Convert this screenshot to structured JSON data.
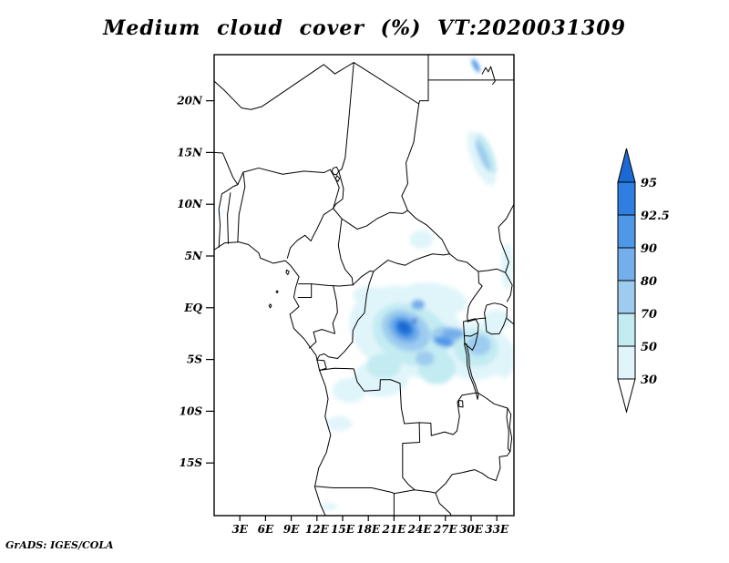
{
  "title": "Medium cloud cover (%) VT:2020031309",
  "footer": "GrADS: IGES/COLA",
  "axes": {
    "lat_labels": [
      "20N",
      "15N",
      "10N",
      "5N",
      "EQ",
      "5S",
      "10S",
      "15S"
    ],
    "lon_labels": [
      "3E",
      "6E",
      "9E",
      "12E",
      "15E",
      "18E",
      "21E",
      "24E",
      "27E",
      "30E",
      "33E"
    ]
  },
  "colorbar": {
    "labels_top_to_bottom": [
      "95",
      "92.5",
      "90",
      "80",
      "70",
      "50",
      "30"
    ],
    "band_colors_top_to_bottom": [
      "#2E7FE1",
      "#4F98E8",
      "#75AFEB",
      "#9DCCEF",
      "#C2EBF2",
      "#E0F5FA"
    ],
    "arrow_top_color": "#1B6AD2",
    "arrow_bottom_color": "#FFFFFF",
    "outline_color": "#000000"
  },
  "chart_data": {
    "type": "heatmap",
    "subtype": "filled-contour-map",
    "variable": "Medium cloud cover",
    "units": "%",
    "valid_time_label": "VT:2020031309",
    "title": "Medium cloud cover (%) VT:2020031309",
    "lon_range_deg_east": [
      0,
      35
    ],
    "lat_range_deg_north": [
      -20.1,
      24.45
    ],
    "lon_ticks_deg_east": [
      3,
      6,
      9,
      12,
      15,
      18,
      21,
      24,
      27,
      30,
      33
    ],
    "lat_ticks_deg_north": [
      20,
      15,
      10,
      5,
      0,
      -5,
      -10,
      -15
    ],
    "contour_levels_percent": [
      30,
      50,
      70,
      80,
      90,
      92.5,
      95
    ],
    "level_colors": {
      "30": "#E0F5FA",
      "50": "#C2EBF2",
      "70": "#9DCCEF",
      "80": "#75AFEB",
      "90": "#4F98E8",
      "92.5": "#2E7FE1",
      "95": "#1B6AD2"
    },
    "background_below_30": "#FFFFFF",
    "grid": false,
    "legend_position": "right-vertical-colorbar",
    "notes": "Maximum cloud cover (>=95%) core over the Congo basin near 22E 2S; lighter 30-70% shading spreads across DRC, the Rift lakes and Tanzania; a diagonal 70-90% band near 31E 14N over Sudan; small >=90% streak near 30.5E 23.5N.",
    "shaded_regions": [
      {
        "lon": 22.5,
        "lat": -2.3,
        "rx_deg": 6.8,
        "ry_deg": 4.3,
        "rot_deg": -12,
        "level": "30"
      },
      {
        "lon": 30.5,
        "lat": -4.2,
        "rx_deg": 4.0,
        "ry_deg": 2.8,
        "rot_deg": 0,
        "level": "30"
      },
      {
        "lon": 19.5,
        "lat": -6.8,
        "rx_deg": 3.2,
        "ry_deg": 1.8,
        "rot_deg": 0,
        "level": "30"
      },
      {
        "lon": 15.8,
        "lat": -8.0,
        "rx_deg": 2.0,
        "ry_deg": 1.2,
        "rot_deg": 0,
        "level": "30"
      },
      {
        "lon": 25.5,
        "lat": 0.8,
        "rx_deg": 4.0,
        "ry_deg": 1.6,
        "rot_deg": -5,
        "level": "30"
      },
      {
        "lon": 18.0,
        "lat": 1.2,
        "rx_deg": 1.8,
        "ry_deg": 0.9,
        "rot_deg": 0,
        "level": "30"
      },
      {
        "lon": 31.2,
        "lat": 14.4,
        "rx_deg": 1.1,
        "ry_deg": 2.9,
        "rot_deg": 28,
        "level": "30"
      },
      {
        "lon": 24.2,
        "lat": 6.6,
        "rx_deg": 1.4,
        "ry_deg": 0.9,
        "rot_deg": 0,
        "level": "30"
      },
      {
        "lon": 34.2,
        "lat": 4.0,
        "rx_deg": 0.7,
        "ry_deg": 2.2,
        "rot_deg": 0,
        "level": "30"
      },
      {
        "lon": 33.0,
        "lat": -1.2,
        "rx_deg": 1.6,
        "ry_deg": 1.0,
        "rot_deg": 0,
        "level": "30"
      },
      {
        "lon": 33.8,
        "lat": -4.8,
        "rx_deg": 1.3,
        "ry_deg": 2.0,
        "rot_deg": 0,
        "level": "30"
      },
      {
        "lon": 14.6,
        "lat": -11.2,
        "rx_deg": 1.5,
        "ry_deg": 0.7,
        "rot_deg": 0,
        "level": "30"
      },
      {
        "lon": 13.4,
        "lat": -19.2,
        "rx_deg": 1.0,
        "ry_deg": 0.35,
        "rot_deg": 0,
        "level": "30"
      },
      {
        "lon": 0.9,
        "lat": 9.2,
        "rx_deg": 0.3,
        "ry_deg": 0.25,
        "rot_deg": 0,
        "level": "30"
      },
      {
        "lon": 23.0,
        "lat": -2.6,
        "rx_deg": 4.6,
        "ry_deg": 2.9,
        "rot_deg": -15,
        "level": "50"
      },
      {
        "lon": 30.6,
        "lat": -3.9,
        "rx_deg": 2.6,
        "ry_deg": 1.8,
        "rot_deg": 0,
        "level": "50"
      },
      {
        "lon": 19.8,
        "lat": -5.6,
        "rx_deg": 2.0,
        "ry_deg": 1.2,
        "rot_deg": 0,
        "level": "50"
      },
      {
        "lon": 26.0,
        "lat": -5.8,
        "rx_deg": 2.2,
        "ry_deg": 1.6,
        "rot_deg": 0,
        "level": "50"
      },
      {
        "lon": 31.8,
        "lat": 14.9,
        "rx_deg": 0.7,
        "ry_deg": 2.2,
        "rot_deg": 28,
        "level": "50"
      },
      {
        "lon": 22.4,
        "lat": -2.2,
        "rx_deg": 2.9,
        "ry_deg": 1.9,
        "rot_deg": -18,
        "level": "70"
      },
      {
        "lon": 27.0,
        "lat": -2.7,
        "rx_deg": 1.7,
        "ry_deg": 0.9,
        "rot_deg": 0,
        "level": "70"
      },
      {
        "lon": 30.9,
        "lat": -3.6,
        "rx_deg": 1.4,
        "ry_deg": 1.0,
        "rot_deg": 0,
        "level": "70"
      },
      {
        "lon": 31.4,
        "lat": 14.7,
        "rx_deg": 0.45,
        "ry_deg": 1.7,
        "rot_deg": 28,
        "level": "70"
      },
      {
        "lon": 24.6,
        "lat": -4.9,
        "rx_deg": 1.1,
        "ry_deg": 0.7,
        "rot_deg": 0,
        "level": "70"
      },
      {
        "lon": 22.2,
        "lat": -2.05,
        "rx_deg": 1.9,
        "ry_deg": 1.25,
        "rot_deg": -22,
        "level": "80"
      },
      {
        "lon": 27.9,
        "lat": -2.5,
        "rx_deg": 1.3,
        "ry_deg": 0.55,
        "rot_deg": 0,
        "level": "80"
      },
      {
        "lon": 23.8,
        "lat": 0.3,
        "rx_deg": 0.8,
        "ry_deg": 0.5,
        "rot_deg": 0,
        "level": "80"
      },
      {
        "lon": 22.2,
        "lat": -2.0,
        "rx_deg": 1.3,
        "ry_deg": 0.9,
        "rot_deg": -22,
        "level": "90"
      },
      {
        "lon": 26.8,
        "lat": -3.3,
        "rx_deg": 1.2,
        "ry_deg": 0.45,
        "rot_deg": -10,
        "level": "90"
      },
      {
        "lon": 30.55,
        "lat": 23.4,
        "rx_deg": 0.3,
        "ry_deg": 0.75,
        "rot_deg": 35,
        "level": "90"
      },
      {
        "lon": 22.2,
        "lat": -1.95,
        "rx_deg": 1.0,
        "ry_deg": 0.68,
        "rot_deg": -22,
        "level": "92.5"
      },
      {
        "lon": 22.15,
        "lat": -1.9,
        "rx_deg": 0.75,
        "ry_deg": 0.5,
        "rot_deg": -22,
        "level": "95"
      },
      {
        "lon": 23.4,
        "lat": -1.25,
        "rx_deg": 0.3,
        "ry_deg": 0.22,
        "rot_deg": 0,
        "level": "95"
      }
    ]
  }
}
